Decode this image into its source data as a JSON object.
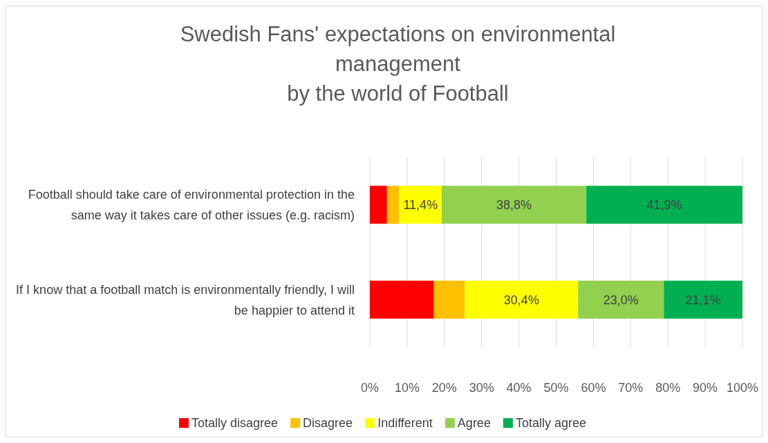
{
  "chart_data": {
    "type": "bar",
    "orientation": "horizontal",
    "stacked": true,
    "title": "Swedish Fans' expectations on environmental\nmanagement\nby the world of Football",
    "categories": [
      "Football should take care of environmental protection in the same way it takes care of other issues (e.g. racism)",
      "If I know that a football match is environmentally friendly, I will be happier to attend it"
    ],
    "series": [
      {
        "name": "Totally disagree",
        "color": "#ff0000",
        "values": [
          4.6,
          17.2
        ],
        "value_labels": [
          null,
          null
        ]
      },
      {
        "name": "Disagree",
        "color": "#ffc000",
        "values": [
          3.3,
          8.3
        ],
        "value_labels": [
          null,
          null
        ]
      },
      {
        "name": "Indifferent",
        "color": "#ffff00",
        "values": [
          11.4,
          30.4
        ],
        "value_labels": [
          "11,4%",
          "30,4%"
        ]
      },
      {
        "name": "Agree",
        "color": "#92d050",
        "values": [
          38.8,
          23.0
        ],
        "value_labels": [
          "38,8%",
          "23,0%"
        ]
      },
      {
        "name": "Totally agree",
        "color": "#00b050",
        "values": [
          41.9,
          21.1
        ],
        "value_labels": [
          "41,9%",
          "21,1%"
        ]
      }
    ],
    "xlim": [
      0,
      100
    ],
    "xticks": [
      {
        "value": 0,
        "label": "0%"
      },
      {
        "value": 10,
        "label": "10%"
      },
      {
        "value": 20,
        "label": "20%"
      },
      {
        "value": 30,
        "label": "30%"
      },
      {
        "value": 40,
        "label": "40%"
      },
      {
        "value": 50,
        "label": "50%"
      },
      {
        "value": 60,
        "label": "60%"
      },
      {
        "value": 70,
        "label": "70%"
      },
      {
        "value": 80,
        "label": "80%"
      },
      {
        "value": 90,
        "label": "90%"
      },
      {
        "value": 100,
        "label": "100%"
      }
    ],
    "grid": "x",
    "legend": "bottom"
  }
}
